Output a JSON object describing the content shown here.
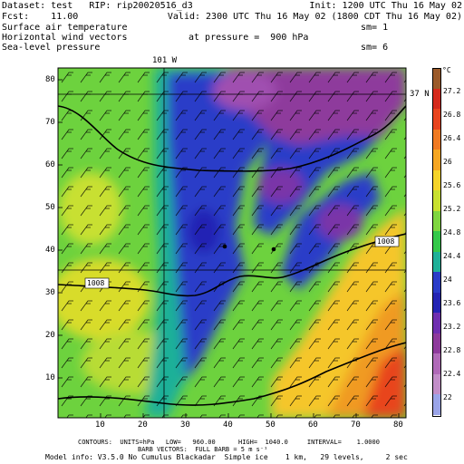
{
  "header": {
    "dataset": "Dataset: test   RIP: rip20020516_d3",
    "init": "Init: 1200 UTC Thu 16 May 02",
    "fcst": "Fcst:    11.00",
    "valid": "Valid: 2300 UTC Thu 16 May 02 (1800 CDT Thu 16 May 02)",
    "field1": "Surface air temperature",
    "sm1": "sm= 1",
    "field2": "Horizontal wind vectors",
    "pressure": "at pressure =  900 hPa",
    "field3": "Sea-level pressure",
    "sm2": "sm= 6"
  },
  "map": {
    "lon_label": "101 W",
    "lat_label": "37 N",
    "x_ticks": [
      "10",
      "20",
      "30",
      "40",
      "50",
      "60",
      "70",
      "80"
    ],
    "y_ticks": [
      "80",
      "70",
      "60",
      "50",
      "40",
      "30",
      "20",
      "10"
    ],
    "contour_labels": [
      "1008",
      "1008"
    ],
    "domain_x": [
      0,
      82
    ],
    "domain_y": [
      0,
      83
    ]
  },
  "colorbar": {
    "unit": "°C",
    "labels": [
      "27.2",
      "26.8",
      "26.4",
      "26",
      "25.6",
      "25.2",
      "24.8",
      "24.4",
      "24",
      "23.6",
      "23.2",
      "22.8",
      "22.4",
      "22"
    ],
    "colors": [
      "#9b5a2a",
      "#d52a1c",
      "#e8441e",
      "#f07a22",
      "#f5a623",
      "#f5d42a",
      "#c8e030",
      "#7fd640",
      "#34c84a",
      "#1fb098",
      "#2a3cc8",
      "#2424b4",
      "#6f2fb0",
      "#8e3a9c",
      "#b06ab8",
      "#c28ec8",
      "#9aa4e8"
    ]
  },
  "footer": {
    "contours": "CONTOURS:  UNITS=hPa   LOW=   960.00      HIGH=  1040.0     INTERVAL=    1.0000",
    "barbs": "BARB VECTORS:  FULL BARB = 5 m s⁻¹",
    "model": "Model info: V3.5.0 No Cumulus Blackadar  Simple ice    1 km,   29 levels,     2 sec"
  }
}
